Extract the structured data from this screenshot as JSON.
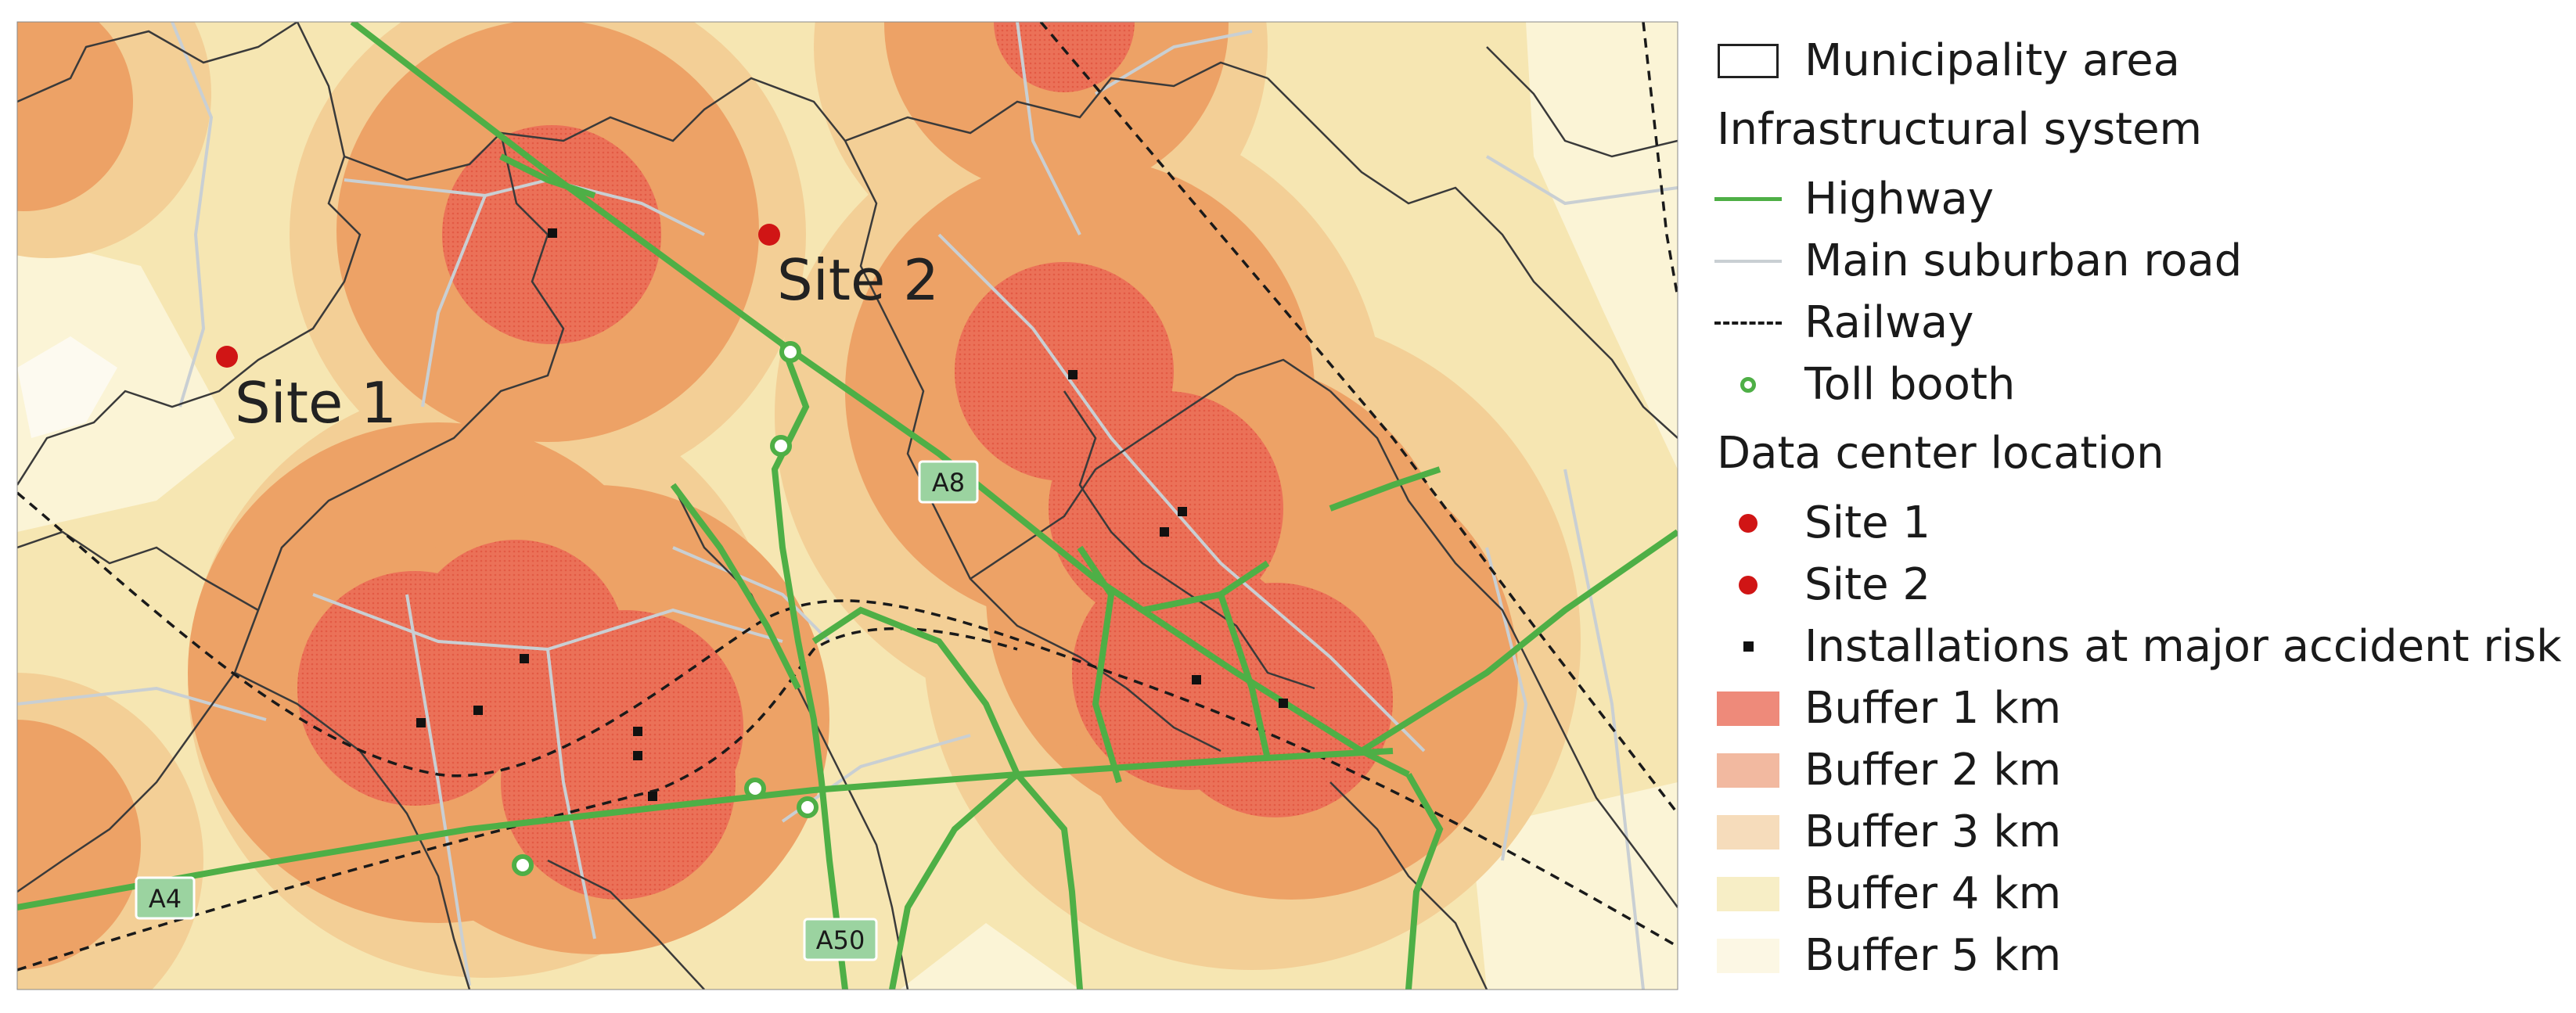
{
  "colors": {
    "buffer_1km": "#eb7158",
    "buffer_2km": "#eda266",
    "buffer_3km": "#f3cf96",
    "buffer_4km": "#f6e6b2",
    "buffer_5km": "#fbf4d6",
    "highway": "#4eaf46",
    "site": "#d01515",
    "road": "#c9cfd3",
    "municipality": "#3a3a3a",
    "shield": "#9bd3a0"
  },
  "map": {
    "sites": [
      {
        "id": "site-1",
        "label": "Site 1"
      },
      {
        "id": "site-2",
        "label": "Site 2"
      }
    ],
    "highway_shields": [
      "A8",
      "A4",
      "A50"
    ]
  },
  "legend": {
    "municipality": "Municipality area",
    "infra_heading": "Infrastructural system",
    "highway": "Highway",
    "main_road": "Main suburban road",
    "railway": "Railway",
    "toll_booth": "Toll booth",
    "dc_heading": "Data center location",
    "site1": "Site 1",
    "site2": "Site 2",
    "installations": "Installations at major accident risk",
    "buffer1": "Buffer 1 km",
    "buffer2": "Buffer 2 km",
    "buffer3": "Buffer 3 km",
    "buffer4": "Buffer 4 km",
    "buffer5": "Buffer 5 km"
  }
}
